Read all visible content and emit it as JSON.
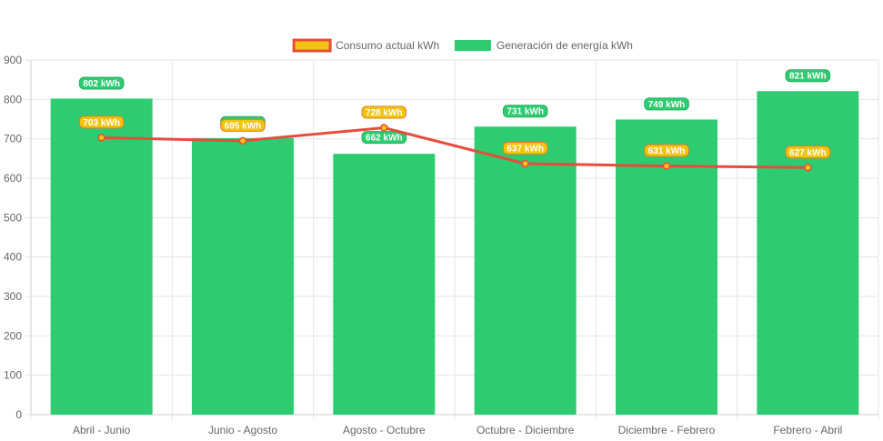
{
  "chart_data": {
    "type": "bar",
    "categories": [
      "Abril - Junio",
      "Junio - Agosto",
      "Agosto - Octubre",
      "Octubre - Diciembre",
      "Diciembre - Febrero",
      "Febrero - Abril"
    ],
    "series": [
      {
        "name": "Consumo actual kWh",
        "render": "line",
        "values": [
          703,
          695,
          728,
          637,
          631,
          627
        ],
        "line_color": "#e74c3c",
        "fill_color": "#f1c40f"
      },
      {
        "name": "Generación de energía kWh",
        "render": "bar",
        "values": [
          802,
          702,
          662,
          731,
          749,
          821
        ],
        "color": "#2ecc71"
      }
    ],
    "unit_suffix": " kWh",
    "ylim": [
      0,
      900
    ],
    "yticks": [
      0,
      100,
      200,
      300,
      400,
      500,
      600,
      700,
      800,
      900
    ],
    "grid": true,
    "legend_position": "top",
    "title": "",
    "xlabel": "",
    "ylabel": ""
  }
}
